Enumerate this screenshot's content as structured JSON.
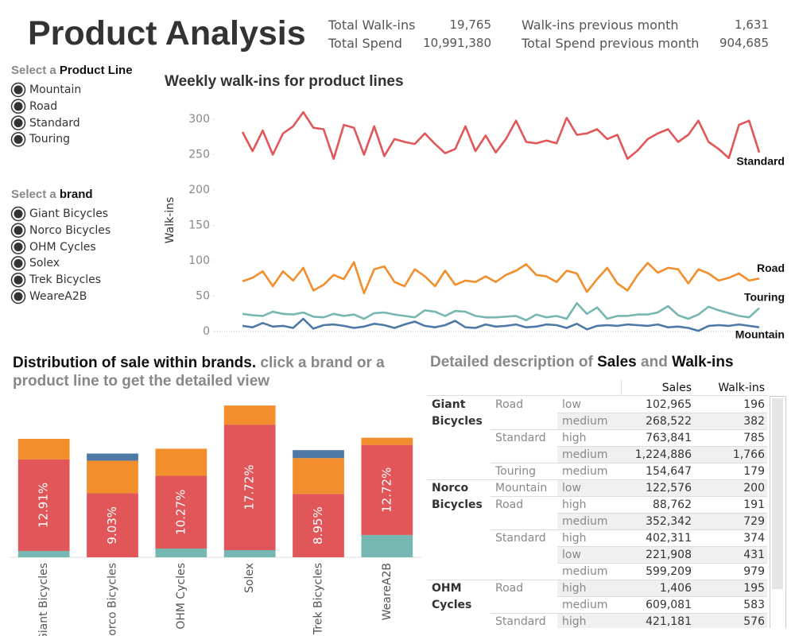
{
  "title": "Product Analysis",
  "kpis": [
    {
      "label": "Total Walk-ins",
      "value": "19,765"
    },
    {
      "label": "Total Spend",
      "value": "10,991,380"
    },
    {
      "label": "Walk-ins previous month",
      "value": "1,631"
    },
    {
      "label": "Total Spend previous month",
      "value": "904,685"
    }
  ],
  "filters": [
    {
      "prefix": "Select a",
      "title": "Product Line",
      "options": [
        "Mountain",
        "Road",
        "Standard",
        "Touring"
      ]
    },
    {
      "prefix": "Select a",
      "title": "brand",
      "options": [
        "Giant Bicycles",
        "Norco Bicycles",
        "OHM Cycles",
        "Solex",
        "Trek Bicycles",
        "WeareA2B"
      ]
    }
  ],
  "chart_data": [
    {
      "type": "line",
      "title": "Weekly walk-ins for product lines",
      "y_label": "Walk-ins",
      "ylim": [
        -10,
        320
      ],
      "yticks": [
        0,
        50,
        100,
        150,
        200,
        250,
        300
      ],
      "grid": false,
      "series": [
        {
          "name": "Standard",
          "color": "#e15759",
          "values": [
            282,
            255,
            284,
            250,
            280,
            290,
            310,
            288,
            286,
            244,
            292,
            288,
            250,
            290,
            248,
            272,
            268,
            265,
            280,
            265,
            252,
            258,
            290,
            255,
            277,
            253,
            272,
            298,
            268,
            266,
            270,
            266,
            302,
            278,
            280,
            286,
            272,
            278,
            244,
            256,
            272,
            280,
            286,
            268,
            278,
            298,
            268,
            258,
            245,
            292,
            298,
            253
          ]
        },
        {
          "name": "Road",
          "color": "#f28e2b",
          "values": [
            71,
            76,
            85,
            64,
            85,
            72,
            90,
            58,
            66,
            80,
            74,
            98,
            54,
            88,
            92,
            70,
            64,
            88,
            78,
            64,
            86,
            66,
            72,
            70,
            78,
            70,
            80,
            86,
            95,
            80,
            78,
            70,
            86,
            82,
            56,
            74,
            90,
            68,
            58,
            80,
            97,
            83,
            90,
            88,
            68,
            88,
            82,
            72,
            76,
            82,
            72,
            75
          ]
        },
        {
          "name": "Touring",
          "color": "#76b7b2",
          "values": [
            25,
            23,
            22,
            28,
            25,
            24,
            27,
            21,
            20,
            25,
            22,
            24,
            18,
            26,
            27,
            24,
            22,
            20,
            30,
            28,
            22,
            29,
            28,
            22,
            20,
            20,
            21,
            22,
            16,
            24,
            20,
            22,
            18,
            40,
            25,
            34,
            18,
            22,
            22,
            24,
            24,
            27,
            36,
            23,
            18,
            24,
            35,
            30,
            26,
            22,
            20,
            33
          ]
        },
        {
          "name": "Mountain",
          "color": "#4e79a7",
          "values": [
            8,
            6,
            12,
            7,
            8,
            5,
            18,
            4,
            9,
            10,
            8,
            5,
            7,
            11,
            9,
            5,
            10,
            14,
            8,
            6,
            9,
            15,
            6,
            5,
            10,
            7,
            8,
            10,
            6,
            7,
            10,
            9,
            5,
            11,
            3,
            8,
            9,
            8,
            10,
            9,
            8,
            10,
            6,
            7,
            5,
            1,
            8,
            9,
            8,
            10,
            8,
            6
          ]
        }
      ]
    },
    {
      "type": "bar",
      "stacked": true,
      "title": "Distribution of sale within brands.",
      "subtitle": "click a brand or a product line to get the detailed view",
      "categories": [
        "Giant Bicycles",
        "Norco Bicycles",
        "OHM Cycles",
        "Solex",
        "Trek Bicycles",
        "WeareA2B"
      ],
      "ylim": [
        0,
        22
      ],
      "series": [
        {
          "name": "Touring",
          "color": "#76b7b2",
          "values": [
            0.9,
            0,
            1.24,
            1.01,
            0,
            3.15
          ]
        },
        {
          "name": "Standard",
          "color": "#e15759",
          "values": [
            12.91,
            9.03,
            10.27,
            17.72,
            8.95,
            12.72
          ],
          "value_labels": [
            "12.91%",
            "9.03%",
            "10.27%",
            "17.72%",
            "8.95%",
            "12.72%"
          ]
        },
        {
          "name": "Road",
          "color": "#f28e2b",
          "values": [
            2.92,
            4.61,
            3.82,
            2.7,
            5.06,
            1.01
          ]
        },
        {
          "name": "Mountain",
          "color": "#4e79a7",
          "values": [
            0,
            1.01,
            0,
            0,
            1.12,
            0
          ]
        }
      ]
    }
  ],
  "table": {
    "title_parts": [
      "Detailed description of",
      "Sales",
      "and",
      "Walk-ins"
    ],
    "columns": [
      "Sales",
      "Walk-ins"
    ],
    "brands": [
      {
        "name": "Giant Bicycles",
        "lines": [
          {
            "name": "Road",
            "rows": [
              {
                "level": "low",
                "sales": "102,965",
                "walkins": "196"
              },
              {
                "level": "medium",
                "sales": "268,522",
                "walkins": "382"
              }
            ]
          },
          {
            "name": "Standard",
            "rows": [
              {
                "level": "high",
                "sales": "763,841",
                "walkins": "785"
              },
              {
                "level": "medium",
                "sales": "1,224,886",
                "walkins": "1,766"
              }
            ]
          },
          {
            "name": "Touring",
            "rows": [
              {
                "level": "medium",
                "sales": "154,647",
                "walkins": "179"
              }
            ]
          }
        ]
      },
      {
        "name": "Norco Bicycles",
        "lines": [
          {
            "name": "Mountain",
            "rows": [
              {
                "level": "low",
                "sales": "122,576",
                "walkins": "200"
              }
            ]
          },
          {
            "name": "Road",
            "rows": [
              {
                "level": "high",
                "sales": "88,762",
                "walkins": "191"
              },
              {
                "level": "medium",
                "sales": "352,342",
                "walkins": "729"
              }
            ]
          },
          {
            "name": "Standard",
            "rows": [
              {
                "level": "high",
                "sales": "402,311",
                "walkins": "374"
              },
              {
                "level": "low",
                "sales": "221,908",
                "walkins": "431"
              },
              {
                "level": "medium",
                "sales": "599,209",
                "walkins": "979"
              }
            ]
          }
        ]
      },
      {
        "name": "OHM Cycles",
        "lines": [
          {
            "name": "Road",
            "rows": [
              {
                "level": "high",
                "sales": "1,406",
                "walkins": "195"
              },
              {
                "level": "medium",
                "sales": "609,081",
                "walkins": "583"
              }
            ]
          },
          {
            "name": "Standard",
            "rows": [
              {
                "level": "high",
                "sales": "421,181",
                "walkins": "576"
              }
            ]
          }
        ]
      }
    ]
  }
}
